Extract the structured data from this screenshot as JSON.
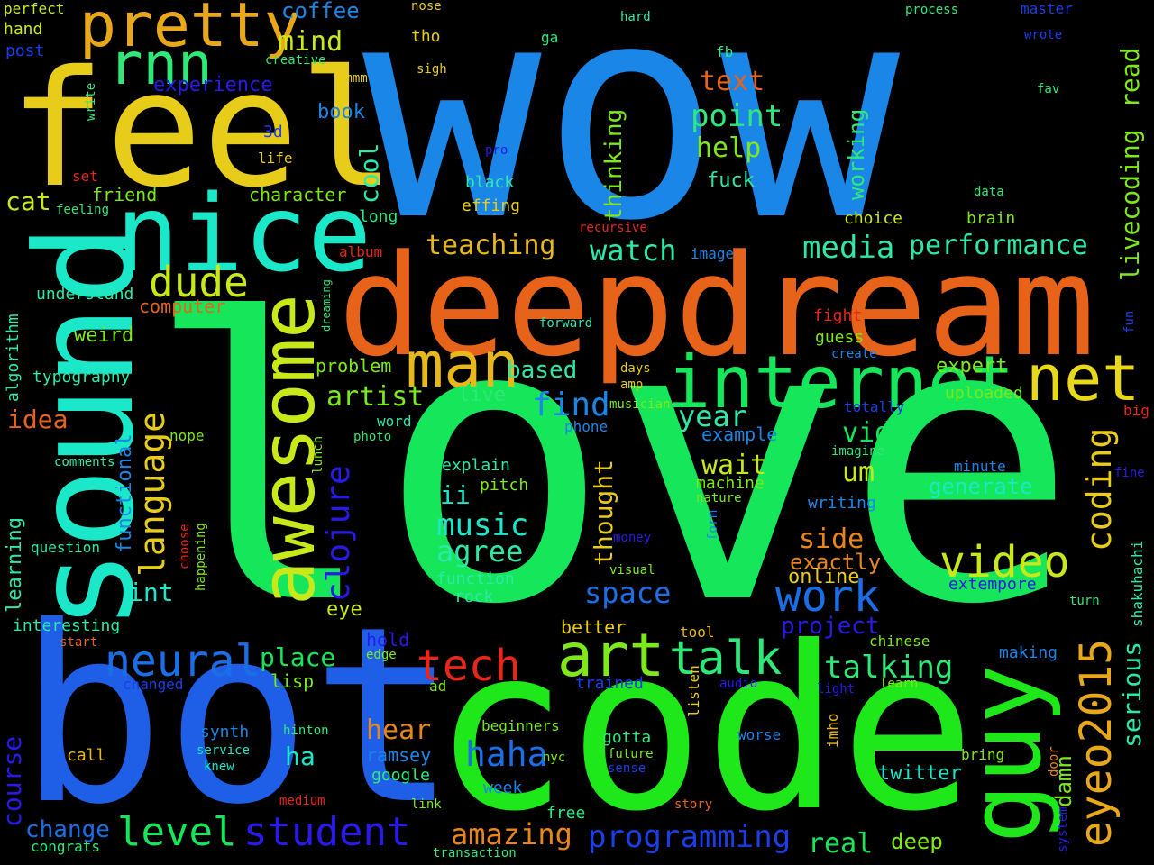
{
  "background": "#000000",
  "words": [
    {
      "text": "wow",
      "color": "#1a86e8"
    },
    {
      "text": "love",
      "color": "#15e65a"
    },
    {
      "text": "bot",
      "color": "#1f5fe8"
    },
    {
      "text": "code",
      "color": "#1ee81a"
    },
    {
      "text": "deepdream",
      "color": "#e8631a"
    },
    {
      "text": "feel",
      "color": "#e8cc1a"
    },
    {
      "text": "sound",
      "color": "#1ae8c8"
    },
    {
      "text": "nice",
      "color": "#1ae8c8"
    },
    {
      "text": "pretty",
      "color": "#e8a81a"
    },
    {
      "text": "rnn",
      "color": "#2ee878"
    },
    {
      "text": "awesome",
      "color": "#c8e81a"
    },
    {
      "text": "internet",
      "color": "#15e65a"
    },
    {
      "text": "man",
      "color": "#e8b81a"
    },
    {
      "text": "net",
      "color": "#e8d81a"
    },
    {
      "text": "guy",
      "color": "#1ee81a"
    },
    {
      "text": "art",
      "color": "#7ee81a"
    },
    {
      "text": "talk",
      "color": "#2ee878"
    },
    {
      "text": "tech",
      "color": "#e8261a"
    },
    {
      "text": "neural",
      "color": "#1a6fe8"
    },
    {
      "text": "video",
      "color": "#c8e81a"
    },
    {
      "text": "work",
      "color": "#1a6fe8"
    },
    {
      "text": "eyeo2015",
      "color": "#e8a81a"
    },
    {
      "text": "coding",
      "color": "#e8cc1a"
    },
    {
      "text": "language",
      "color": "#e8cc1a"
    },
    {
      "text": "clojure",
      "color": "#2a1ae8"
    },
    {
      "text": "dude",
      "color": "#c8e81a"
    },
    {
      "text": "level",
      "color": "#15e65a"
    },
    {
      "text": "student",
      "color": "#2a1ae8"
    },
    {
      "text": "programming",
      "color": "#1a3ee8"
    },
    {
      "text": "amazing",
      "color": "#e8861a"
    },
    {
      "text": "haha",
      "color": "#1a6fe8"
    },
    {
      "text": "music",
      "color": "#1ae8c8"
    },
    {
      "text": "agree",
      "color": "#2ee8a8"
    },
    {
      "text": "media",
      "color": "#2ee8a8"
    },
    {
      "text": "performance",
      "color": "#2ee8a8"
    },
    {
      "text": "point",
      "color": "#2ee878"
    },
    {
      "text": "help",
      "color": "#7ee81a"
    },
    {
      "text": "text",
      "color": "#e8631a"
    },
    {
      "text": "teaching",
      "color": "#e8b81a"
    },
    {
      "text": "watch",
      "color": "#2ee8a8"
    },
    {
      "text": "livecoding",
      "color": "#7ee81a"
    },
    {
      "text": "read",
      "color": "#7ee81a"
    },
    {
      "text": "serious",
      "color": "#2ee8a8"
    },
    {
      "text": "talking",
      "color": "#2ee878"
    },
    {
      "text": "place",
      "color": "#15e65a"
    },
    {
      "text": "space",
      "color": "#1a6fe8"
    },
    {
      "text": "year",
      "color": "#2ee8a8"
    },
    {
      "text": "find",
      "color": "#1a86e8"
    },
    {
      "text": "artist",
      "color": "#7ee81a"
    },
    {
      "text": "wait",
      "color": "#c8e81a"
    },
    {
      "text": "vid",
      "color": "#15e65a"
    },
    {
      "text": "um",
      "color": "#c8e81a"
    },
    {
      "text": "side",
      "color": "#e8861a"
    },
    {
      "text": "hear",
      "color": "#e8861a"
    },
    {
      "text": "real",
      "color": "#15e65a"
    },
    {
      "text": "deep",
      "color": "#7ee81a"
    },
    {
      "text": "change",
      "color": "#1a6fe8"
    },
    {
      "text": "course",
      "color": "#2a1ae8"
    },
    {
      "text": "int",
      "color": "#1ae8c8"
    },
    {
      "text": "ii",
      "color": "#1ae8c8"
    },
    {
      "text": "ha",
      "color": "#1ae8c8"
    },
    {
      "text": "thought",
      "color": "#e8cc1a"
    },
    {
      "text": "cool",
      "color": "#2ee8a8"
    },
    {
      "text": "mind",
      "color": "#c8e81a"
    },
    {
      "text": "coffee",
      "color": "#1a86e8"
    },
    {
      "text": "cat",
      "color": "#c8e81a"
    },
    {
      "text": "idea",
      "color": "#e8631a"
    },
    {
      "text": "weird",
      "color": "#7ee81a"
    },
    {
      "text": "learning",
      "color": "#2ee8a8"
    },
    {
      "text": "functional",
      "color": "#1a86e8"
    },
    {
      "text": "interesting",
      "color": "#2ee8a8"
    },
    {
      "text": "project",
      "color": "#2a1ae8"
    },
    {
      "text": "twitter",
      "color": "#1ae8c8"
    },
    {
      "text": "damn",
      "color": "#7ee81a"
    },
    {
      "text": "exactly",
      "color": "#e8861a"
    },
    {
      "text": "online",
      "color": "#e8cc1a"
    },
    {
      "text": "generate",
      "color": "#1ae8c8"
    },
    {
      "text": "expert",
      "color": "#7ee81a"
    },
    {
      "text": "uploaded",
      "color": "#7ee81a"
    },
    {
      "text": "based",
      "color": "#2ee8a8"
    },
    {
      "text": "problem",
      "color": "#7ee81a"
    },
    {
      "text": "live",
      "color": "#2ee878"
    },
    {
      "text": "fuck",
      "color": "#2ee8a8"
    },
    {
      "text": "thinking",
      "color": "#7ee81a"
    },
    {
      "text": "working",
      "color": "#2ee878"
    },
    {
      "text": "choice",
      "color": "#c8e81a"
    },
    {
      "text": "brain",
      "color": "#7ee81a"
    },
    {
      "text": "book",
      "color": "#1a86e8"
    },
    {
      "text": "experience",
      "color": "#2a1ae8"
    },
    {
      "text": "character",
      "color": "#7ee81a"
    },
    {
      "text": "friend",
      "color": "#7ee81a"
    },
    {
      "text": "computer",
      "color": "#e8631a"
    },
    {
      "text": "understand",
      "color": "#2ee8a8"
    },
    {
      "text": "typography",
      "color": "#2ee8a8"
    },
    {
      "text": "algorithm",
      "color": "#2ee8a8"
    },
    {
      "text": "question",
      "color": "#2ee8a8"
    },
    {
      "text": "black",
      "color": "#2ee8a8"
    },
    {
      "text": "effing",
      "color": "#e8cc1a"
    },
    {
      "text": "long",
      "color": "#2ee878"
    },
    {
      "text": "explain",
      "color": "#2ee8a8"
    },
    {
      "text": "pitch",
      "color": "#7ee81a"
    },
    {
      "text": "function",
      "color": "#2ee8a8"
    },
    {
      "text": "rock",
      "color": "#2ee8a8"
    },
    {
      "text": "eye",
      "color": "#c8e81a"
    },
    {
      "text": "lisp",
      "color": "#7ee81a"
    },
    {
      "text": "better",
      "color": "#e8cc1a"
    },
    {
      "text": "machine",
      "color": "#7ee81a"
    },
    {
      "text": "nature",
      "color": "#7ee81a"
    },
    {
      "text": "example",
      "color": "#1a86e8"
    },
    {
      "text": "writing",
      "color": "#1a86e8"
    },
    {
      "text": "extempore",
      "color": "#2a1ae8"
    },
    {
      "text": "ramsey",
      "color": "#1a86e8"
    },
    {
      "text": "google",
      "color": "#2ee878"
    },
    {
      "text": "week",
      "color": "#1a86e8"
    },
    {
      "text": "worse",
      "color": "#1a86e8"
    },
    {
      "text": "gotta",
      "color": "#2ee878"
    },
    {
      "text": "future",
      "color": "#7ee81a"
    },
    {
      "text": "making",
      "color": "#1a86e8"
    },
    {
      "text": "chinese",
      "color": "#7ee81a"
    },
    {
      "text": "trained",
      "color": "#1a3ee8"
    },
    {
      "text": "synth",
      "color": "#1a86e8"
    },
    {
      "text": "service",
      "color": "#1ae8c8"
    },
    {
      "text": "hold",
      "color": "#2a1ae8"
    },
    {
      "text": "edge",
      "color": "#7ee81a"
    },
    {
      "text": "free",
      "color": "#2ee878"
    },
    {
      "text": "beginners",
      "color": "#7ee81a"
    },
    {
      "text": "congrats",
      "color": "#2ee878"
    },
    {
      "text": "call",
      "color": "#e8b81a"
    },
    {
      "text": "changed",
      "color": "#1a3ee8"
    },
    {
      "text": "hinton",
      "color": "#2ee878"
    },
    {
      "text": "medium",
      "color": "#e8261a"
    },
    {
      "text": "link",
      "color": "#7ee81a"
    },
    {
      "text": "transaction",
      "color": "#2ee878"
    },
    {
      "text": "story",
      "color": "#e8631a"
    },
    {
      "text": "sense",
      "color": "#1a3ee8"
    },
    {
      "text": "nyc",
      "color": "#7ee81a"
    },
    {
      "text": "bring",
      "color": "#7ee81a"
    },
    {
      "text": "knew",
      "color": "#1ae8c8"
    },
    {
      "text": "ad",
      "color": "#7ee81a"
    },
    {
      "text": "audio",
      "color": "#2a1ae8"
    },
    {
      "text": "light",
      "color": "#2a1ae8"
    },
    {
      "text": "learn",
      "color": "#7ee81a"
    },
    {
      "text": "listen",
      "color": "#e8cc1a"
    },
    {
      "text": "imho",
      "color": "#e8b81a"
    },
    {
      "text": "door",
      "color": "#e8861a"
    },
    {
      "text": "system",
      "color": "#2a1ae8"
    },
    {
      "text": "shakuhachi",
      "color": "#2ee8a8"
    },
    {
      "text": "turn",
      "color": "#2ee878"
    },
    {
      "text": "fine",
      "color": "#2a1ae8"
    },
    {
      "text": "big",
      "color": "#e8261a"
    },
    {
      "text": "fun",
      "color": "#1a3ee8"
    },
    {
      "text": "minute",
      "color": "#1a86e8"
    },
    {
      "text": "tool",
      "color": "#e8b81a"
    },
    {
      "text": "visual",
      "color": "#7ee81a"
    },
    {
      "text": "money",
      "color": "#2a1ae8"
    },
    {
      "text": "form",
      "color": "#1a86e8"
    },
    {
      "text": "imagine",
      "color": "#2ee878"
    },
    {
      "text": "totally",
      "color": "#1a3ee8"
    },
    {
      "text": "musician",
      "color": "#7ee81a"
    },
    {
      "text": "phone",
      "color": "#1a86e8"
    },
    {
      "text": "amp",
      "color": "#e8cc1a"
    },
    {
      "text": "days",
      "color": "#e8cc1a"
    },
    {
      "text": "word",
      "color": "#2ee8a8"
    },
    {
      "text": "photo",
      "color": "#2ee878"
    },
    {
      "text": "nope",
      "color": "#7ee81a"
    },
    {
      "text": "comments",
      "color": "#2ee8a8"
    },
    {
      "text": "lunch",
      "color": "#7ee81a"
    },
    {
      "text": "choose",
      "color": "#e8261a"
    },
    {
      "text": "happening",
      "color": "#7ee81a"
    },
    {
      "text": "start",
      "color": "#e8631a"
    },
    {
      "text": "dreaming",
      "color": "#2ee878"
    },
    {
      "text": "album",
      "color": "#e8261a"
    },
    {
      "text": "fight",
      "color": "#e8261a"
    },
    {
      "text": "guess",
      "color": "#7ee81a"
    },
    {
      "text": "create",
      "color": "#1a86e8"
    },
    {
      "text": "forward",
      "color": "#2ee8a8"
    },
    {
      "text": "image",
      "color": "#1a86e8"
    },
    {
      "text": "recursive",
      "color": "#e8261a"
    },
    {
      "text": "data",
      "color": "#2ee878"
    },
    {
      "text": "fav",
      "color": "#2ee878"
    },
    {
      "text": "fb",
      "color": "#2ee878"
    },
    {
      "text": "pro",
      "color": "#2a1ae8"
    },
    {
      "text": "3d",
      "color": "#1a3ee8"
    },
    {
      "text": "life",
      "color": "#e8cc1a"
    },
    {
      "text": "set",
      "color": "#e8261a"
    },
    {
      "text": "feeling",
      "color": "#2ee878"
    },
    {
      "text": "creative",
      "color": "#2ee878"
    },
    {
      "text": "hmmm",
      "color": "#e8cc1a"
    },
    {
      "text": "write",
      "color": "#2ee878"
    },
    {
      "text": "post",
      "color": "#1a3ee8"
    },
    {
      "text": "hand",
      "color": "#c8e81a"
    },
    {
      "text": "perfect",
      "color": "#c8e81a"
    },
    {
      "text": "nose",
      "color": "#e8cc1a"
    },
    {
      "text": "tho",
      "color": "#e8cc1a"
    },
    {
      "text": "sigh",
      "color": "#e8cc1a"
    },
    {
      "text": "ga",
      "color": "#2ee878"
    },
    {
      "text": "hard",
      "color": "#2ee8a8"
    },
    {
      "text": "process",
      "color": "#2ee878"
    },
    {
      "text": "master",
      "color": "#1a3ee8"
    },
    {
      "text": "wrote",
      "color": "#1a3ee8"
    }
  ]
}
